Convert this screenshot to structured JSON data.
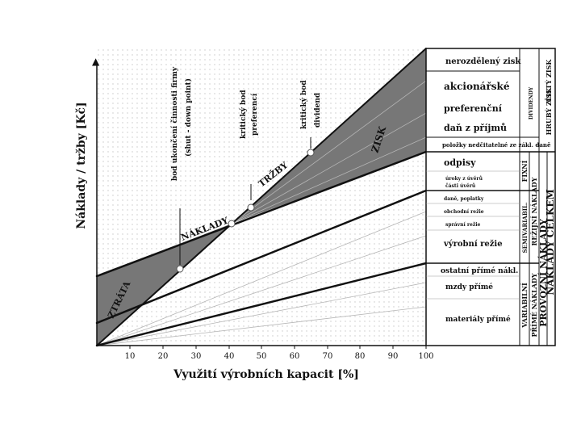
{
  "axes": {
    "y_label": "Náklady / tržby [Kč]",
    "x_label": "Využití výrobních kapacit [%]",
    "y_arrow": "▲",
    "x_ticks": [
      "10",
      "20",
      "30",
      "40",
      "50",
      "60",
      "70",
      "80",
      "90",
      "100"
    ]
  },
  "curves": {
    "trzby": "TRŽBY",
    "naklady": "NÁKLADY",
    "zisk": "ZISK",
    "ztrata": "ZTRÁTA"
  },
  "points": {
    "shutdown": [
      "bod ukončení činnosti firmy",
      "(shut - down point)"
    ],
    "preferenci": [
      "kritický bod",
      "preferencí"
    ],
    "dividend": [
      "kritický bod",
      "dividend"
    ]
  },
  "table": {
    "rows": {
      "nerozdeleny_zisk": "nerozdělený zisk",
      "akcionarske": "akcionářské",
      "preferencni": "preferenční",
      "dan_z_prijmu": "daň z příjmů",
      "polozky": "položky nedčitatelné ze zákl. daně",
      "odpisy": "odpisy",
      "uroky1": "úroky z úvěrů",
      "uroky2": "části úvěrů",
      "dane_poplatky": "daně, poplatky",
      "obchodni_rezie": "obchodní režie",
      "spravni_rezie": "správní režie",
      "vyrobni_rezie": "výrobní režie",
      "ostatni_prime": "ostatní přímé nákl.",
      "mzdy_prime": "mzdy přímé",
      "materialy_prime": "materiály přímé"
    },
    "side": {
      "dividendy": "DIVIDENDY",
      "cisty_zisk": "ČISTÝ ZISK",
      "hruby_zisk": "HRUBÝ ZISK",
      "fixni": "FIXNÍ",
      "semivariabil": "SEMIVARIABIL.",
      "rezijni_naklady": "REŽIJNÍ NÁKLADY",
      "variabilni": "VARIABILNÍ",
      "prime_naklady": "PŘÍMÉ NÁKLADY",
      "provozni_naklady": "PROVOZNÍ NÁKLADY",
      "naklady_celkem": "NÁKLADY CELKEM"
    }
  }
}
